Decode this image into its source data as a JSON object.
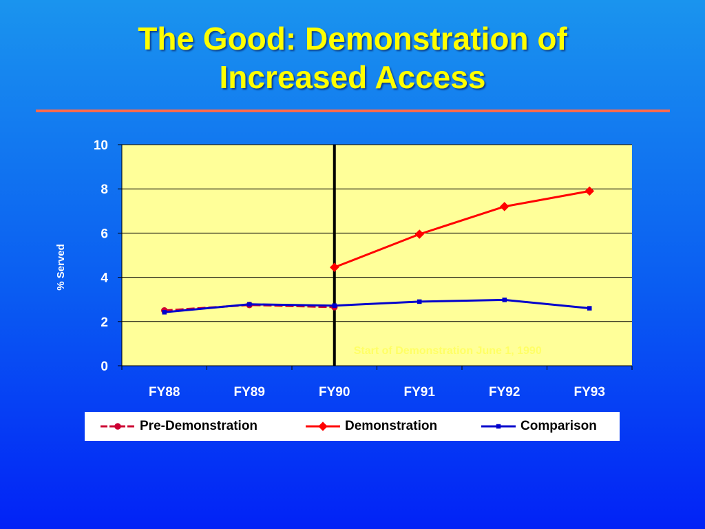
{
  "slide": {
    "title_line1": "The Good: Demonstration of",
    "title_line2": "Increased Access",
    "title_color": "#ffff00",
    "rule_color": "#ff6a4d"
  },
  "chart_data": {
    "type": "line",
    "categories": [
      "FY88",
      "FY89",
      "FY90",
      "FY91",
      "FY92",
      "FY93"
    ],
    "ylabel": "% Served",
    "xlabel": "",
    "ylim": [
      0,
      10
    ],
    "yticks": [
      0,
      2,
      4,
      6,
      8,
      10
    ],
    "grid": true,
    "plot_background": "#ffff99",
    "legend_position": "bottom",
    "series": [
      {
        "name": "Pre-Demonstration",
        "color": "#cc0033",
        "marker": "circle",
        "dash": "dashed",
        "values": [
          2.5,
          2.75,
          2.65,
          null,
          null,
          null
        ]
      },
      {
        "name": "Demonstration",
        "color": "#ff0000",
        "marker": "diamond",
        "dash": "solid",
        "values": [
          null,
          null,
          4.45,
          5.95,
          7.2,
          7.9
        ]
      },
      {
        "name": "Comparison",
        "color": "#0000cc",
        "marker": "square",
        "dash": "solid",
        "values": [
          2.42,
          2.78,
          2.72,
          2.9,
          2.98,
          2.6
        ]
      }
    ],
    "event_marker": {
      "category": "FY90",
      "color": "#000000"
    },
    "annotations": [
      {
        "text": "Start of Demonstration June 1, 1990",
        "category": "FY90",
        "y": 0.75,
        "color": "#ffff66"
      }
    ]
  }
}
